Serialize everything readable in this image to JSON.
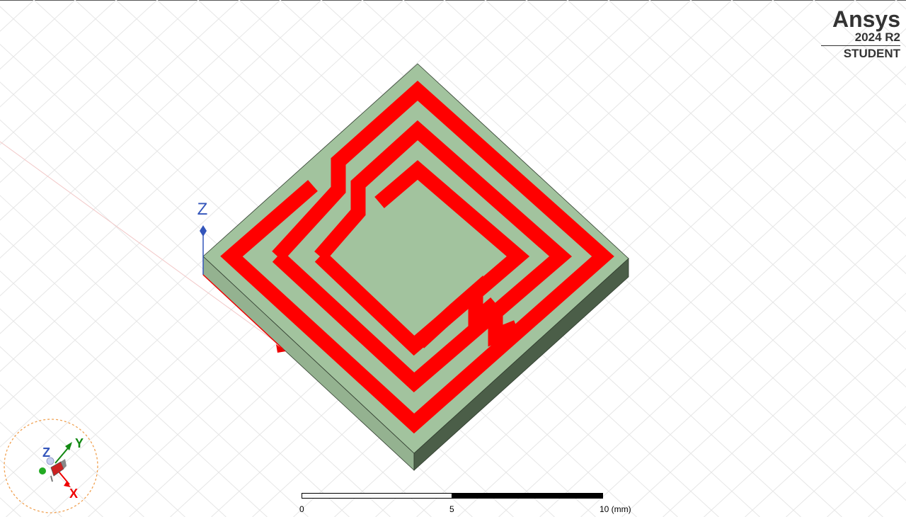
{
  "branding": {
    "name": "Ansys",
    "version": "2024 R2",
    "edition": "STUDENT"
  },
  "axes": {
    "z_label": "Z"
  },
  "triad": {
    "x_label": "X",
    "y_label": "Y",
    "z_label": "Z"
  },
  "scale_bar": {
    "tick_0": "0",
    "tick_1": "5",
    "tick_2": "10 (mm)"
  },
  "colors": {
    "substrate_top": "#a2c39e",
    "substrate_left": "#94b290",
    "substrate_right": "#4b5e48",
    "trace": "#ff0000",
    "z_axis": "#3355bb",
    "x_axis": "#ee0000",
    "y_axis": "#118811",
    "grid": "#e6e6e6"
  }
}
